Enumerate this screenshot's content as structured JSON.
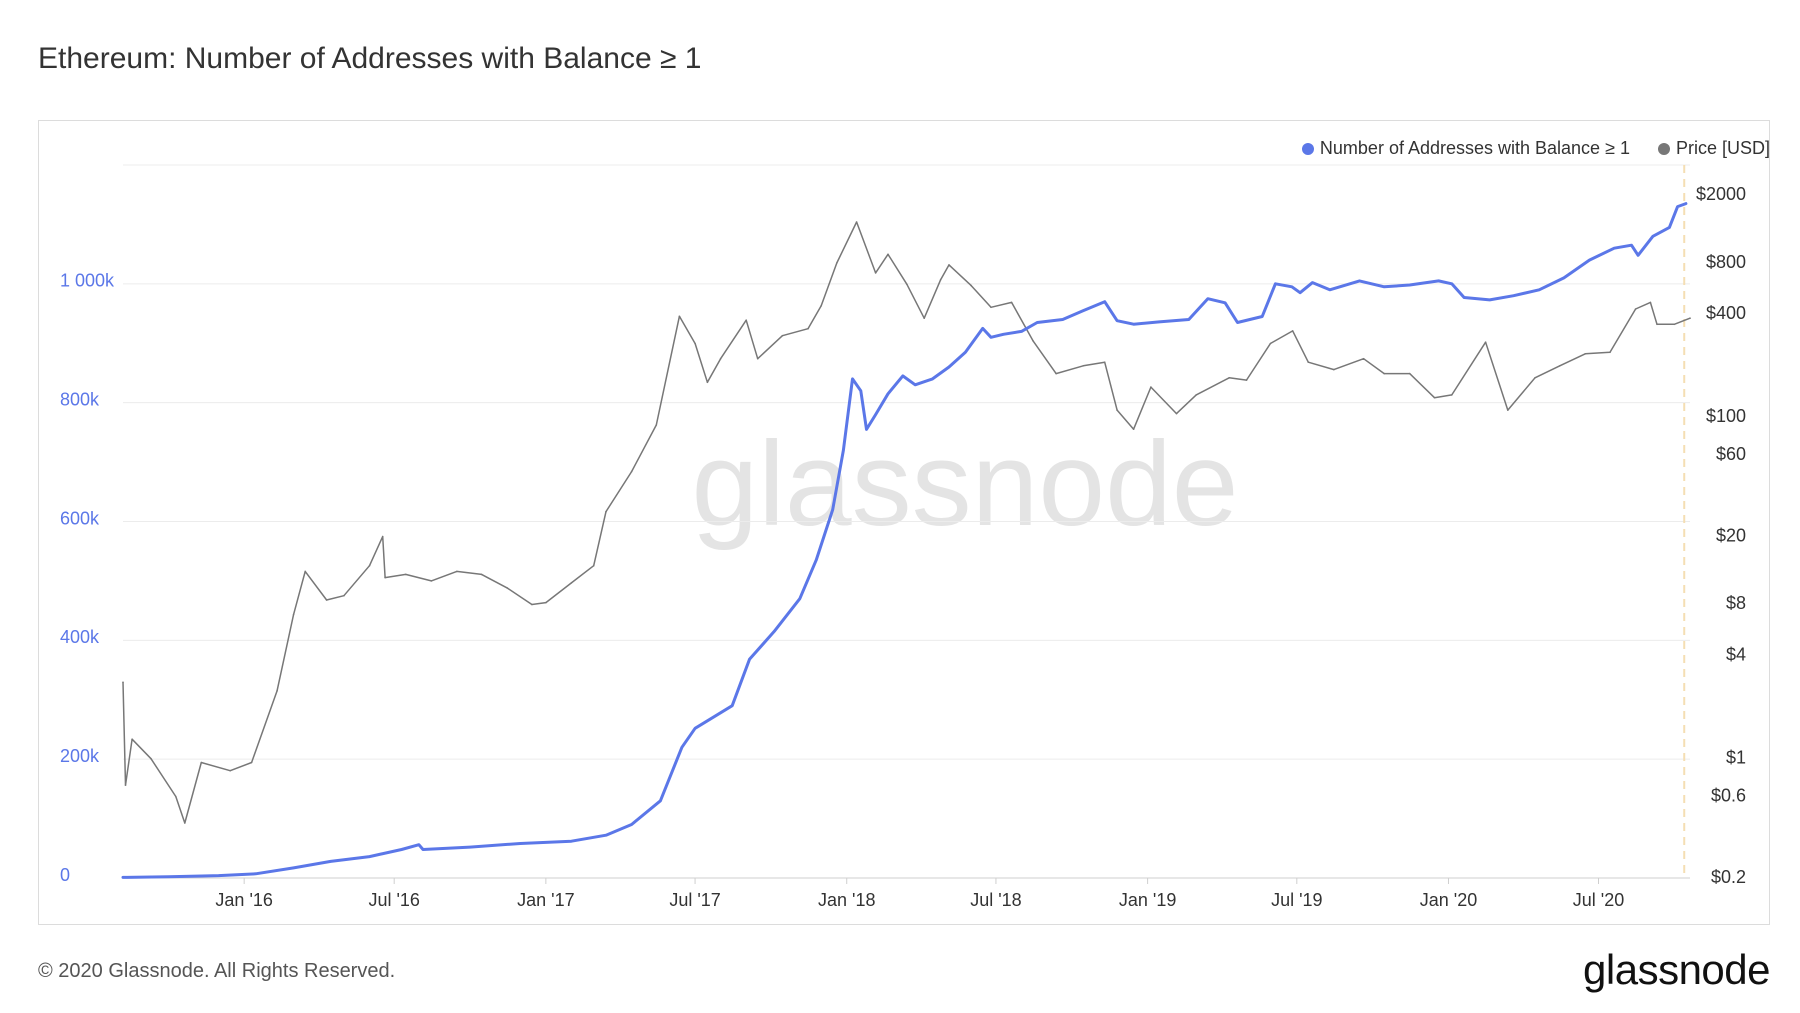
{
  "title": "Ethereum: Number of Addresses with Balance ≥ 1",
  "footer": {
    "copyright": "© 2020 Glassnode. All Rights Reserved.",
    "brand": "glassnode"
  },
  "watermark": "glassnode",
  "colors": {
    "addresses": "#5b77e8",
    "price": "#777777",
    "grid": "#ececec",
    "left_axis_text": "#5b77e8",
    "highlight": "#f5deb3"
  },
  "chart_data": {
    "type": "line",
    "title": "Ethereum: Number of Addresses with Balance ≥ 1",
    "grid": true,
    "legend_placement": "top-right",
    "x_axis": {
      "type": "date",
      "range": [
        "2015-08-07",
        "2020-10-20"
      ],
      "ticks": [
        {
          "date": "2016-01-01",
          "label": "Jan '16"
        },
        {
          "date": "2016-07-01",
          "label": "Jul '16"
        },
        {
          "date": "2017-01-01",
          "label": "Jan '17"
        },
        {
          "date": "2017-07-01",
          "label": "Jul '17"
        },
        {
          "date": "2018-01-01",
          "label": "Jan '18"
        },
        {
          "date": "2018-07-01",
          "label": "Jul '18"
        },
        {
          "date": "2019-01-01",
          "label": "Jan '19"
        },
        {
          "date": "2019-07-01",
          "label": "Jul '19"
        },
        {
          "date": "2020-01-01",
          "label": "Jan '20"
        },
        {
          "date": "2020-07-01",
          "label": "Jul '20"
        }
      ]
    },
    "y_left": {
      "range": [
        0,
        1200000
      ],
      "ticks": [
        {
          "value": 0,
          "label": "0"
        },
        {
          "value": 200000,
          "label": "200k"
        },
        {
          "value": 400000,
          "label": "400k"
        },
        {
          "value": 600000,
          "label": "600k"
        },
        {
          "value": 800000,
          "label": "800k"
        },
        {
          "value": 1000000,
          "label": "1 000k"
        }
      ]
    },
    "y_right": {
      "scale": "log",
      "range": [
        0.2,
        3000
      ],
      "ticks": [
        {
          "value": 2000,
          "label": "$2000"
        },
        {
          "value": 800,
          "label": "$800"
        },
        {
          "value": 400,
          "label": "$400"
        },
        {
          "value": 100,
          "label": "$100"
        },
        {
          "value": 60,
          "label": "$60"
        },
        {
          "value": 20,
          "label": "$20"
        },
        {
          "value": 8,
          "label": "$8"
        },
        {
          "value": 4,
          "label": "$4"
        },
        {
          "value": 1,
          "label": "$1"
        },
        {
          "value": 0.6,
          "label": "$0.6"
        },
        {
          "value": 0.2,
          "label": "$0.2"
        }
      ]
    },
    "highlight_date": "2020-10-13",
    "series": [
      {
        "name": "Number of Addresses with Balance ≥ 1",
        "axis": "left",
        "color": "#5b77e8",
        "points": [
          [
            "2015-08-07",
            1000
          ],
          [
            "2015-10-01",
            2000
          ],
          [
            "2015-12-01",
            4000
          ],
          [
            "2016-01-15",
            7000
          ],
          [
            "2016-03-01",
            17000
          ],
          [
            "2016-04-15",
            28000
          ],
          [
            "2016-06-01",
            36000
          ],
          [
            "2016-07-10",
            48000
          ],
          [
            "2016-07-31",
            56000
          ],
          [
            "2016-08-05",
            48000
          ],
          [
            "2016-10-01",
            52000
          ],
          [
            "2016-12-01",
            58000
          ],
          [
            "2017-02-01",
            62000
          ],
          [
            "2017-03-15",
            72000
          ],
          [
            "2017-04-15",
            90000
          ],
          [
            "2017-05-20",
            130000
          ],
          [
            "2017-06-15",
            220000
          ],
          [
            "2017-07-01",
            252000
          ],
          [
            "2017-07-20",
            268000
          ],
          [
            "2017-08-15",
            290000
          ],
          [
            "2017-09-05",
            368000
          ],
          [
            "2017-10-05",
            415000
          ],
          [
            "2017-11-05",
            470000
          ],
          [
            "2017-11-25",
            535000
          ],
          [
            "2017-12-15",
            620000
          ],
          [
            "2017-12-28",
            720000
          ],
          [
            "2018-01-08",
            840000
          ],
          [
            "2018-01-18",
            820000
          ],
          [
            "2018-01-25",
            755000
          ],
          [
            "2018-02-05",
            780000
          ],
          [
            "2018-02-20",
            815000
          ],
          [
            "2018-03-10",
            845000
          ],
          [
            "2018-03-25",
            830000
          ],
          [
            "2018-04-15",
            840000
          ],
          [
            "2018-05-05",
            860000
          ],
          [
            "2018-05-25",
            885000
          ],
          [
            "2018-06-15",
            925000
          ],
          [
            "2018-06-25",
            910000
          ],
          [
            "2018-07-10",
            915000
          ],
          [
            "2018-08-01",
            920000
          ],
          [
            "2018-08-20",
            935000
          ],
          [
            "2018-09-20",
            940000
          ],
          [
            "2018-10-15",
            955000
          ],
          [
            "2018-11-10",
            970000
          ],
          [
            "2018-11-25",
            938000
          ],
          [
            "2018-12-15",
            932000
          ],
          [
            "2019-01-15",
            936000
          ],
          [
            "2019-02-20",
            940000
          ],
          [
            "2019-03-15",
            975000
          ],
          [
            "2019-04-05",
            968000
          ],
          [
            "2019-04-20",
            935000
          ],
          [
            "2019-05-20",
            945000
          ],
          [
            "2019-06-05",
            1000000
          ],
          [
            "2019-06-25",
            995000
          ],
          [
            "2019-07-05",
            985000
          ],
          [
            "2019-07-20",
            1002000
          ],
          [
            "2019-08-10",
            990000
          ],
          [
            "2019-09-15",
            1005000
          ],
          [
            "2019-10-15",
            995000
          ],
          [
            "2019-11-15",
            998000
          ],
          [
            "2019-12-20",
            1005000
          ],
          [
            "2020-01-05",
            1000000
          ],
          [
            "2020-01-20",
            977000
          ],
          [
            "2020-02-20",
            973000
          ],
          [
            "2020-03-20",
            980000
          ],
          [
            "2020-04-20",
            990000
          ],
          [
            "2020-05-20",
            1010000
          ],
          [
            "2020-06-20",
            1040000
          ],
          [
            "2020-07-20",
            1060000
          ],
          [
            "2020-08-10",
            1065000
          ],
          [
            "2020-08-18",
            1048000
          ],
          [
            "2020-09-05",
            1080000
          ],
          [
            "2020-09-25",
            1095000
          ],
          [
            "2020-10-05",
            1130000
          ],
          [
            "2020-10-15",
            1135000
          ]
        ]
      },
      {
        "name": "Price [USD]",
        "axis": "right",
        "scale": "log",
        "color": "#777777",
        "points": [
          [
            "2015-08-07",
            2.8
          ],
          [
            "2015-08-10",
            0.7
          ],
          [
            "2015-08-18",
            1.3
          ],
          [
            "2015-09-10",
            1.0
          ],
          [
            "2015-10-10",
            0.6
          ],
          [
            "2015-10-21",
            0.42
          ],
          [
            "2015-11-10",
            0.95
          ],
          [
            "2015-12-15",
            0.85
          ],
          [
            "2016-01-10",
            0.95
          ],
          [
            "2016-02-10",
            2.5
          ],
          [
            "2016-03-01",
            7.0
          ],
          [
            "2016-03-15",
            12.5
          ],
          [
            "2016-04-10",
            8.5
          ],
          [
            "2016-05-01",
            9.0
          ],
          [
            "2016-06-01",
            13.5
          ],
          [
            "2016-06-17",
            20.0
          ],
          [
            "2016-06-20",
            11.5
          ],
          [
            "2016-07-15",
            12.0
          ],
          [
            "2016-08-15",
            11.0
          ],
          [
            "2016-09-15",
            12.5
          ],
          [
            "2016-10-15",
            12.0
          ],
          [
            "2016-11-15",
            10.0
          ],
          [
            "2016-12-15",
            8.0
          ],
          [
            "2017-01-01",
            8.2
          ],
          [
            "2017-02-01",
            10.7
          ],
          [
            "2017-02-28",
            13.5
          ],
          [
            "2017-03-15",
            28.0
          ],
          [
            "2017-04-15",
            48.0
          ],
          [
            "2017-05-15",
            90.0
          ],
          [
            "2017-06-12",
            390.0
          ],
          [
            "2017-07-01",
            270.0
          ],
          [
            "2017-07-16",
            160.0
          ],
          [
            "2017-08-01",
            220.0
          ],
          [
            "2017-09-01",
            370.0
          ],
          [
            "2017-09-15",
            220.0
          ],
          [
            "2017-10-15",
            300.0
          ],
          [
            "2017-11-15",
            330.0
          ],
          [
            "2017-12-01",
            450.0
          ],
          [
            "2017-12-20",
            800.0
          ],
          [
            "2018-01-13",
            1390.0
          ],
          [
            "2018-02-05",
            700.0
          ],
          [
            "2018-02-20",
            900.0
          ],
          [
            "2018-03-15",
            600.0
          ],
          [
            "2018-04-05",
            380.0
          ],
          [
            "2018-04-25",
            640.0
          ],
          [
            "2018-05-05",
            780.0
          ],
          [
            "2018-06-01",
            590.0
          ],
          [
            "2018-06-25",
            440.0
          ],
          [
            "2018-07-20",
            470.0
          ],
          [
            "2018-08-15",
            280.0
          ],
          [
            "2018-09-12",
            180.0
          ],
          [
            "2018-10-15",
            200.0
          ],
          [
            "2018-11-10",
            210.0
          ],
          [
            "2018-11-25",
            110.0
          ],
          [
            "2018-12-15",
            85.0
          ],
          [
            "2019-01-05",
            150.0
          ],
          [
            "2019-02-05",
            105.0
          ],
          [
            "2019-03-01",
            135.0
          ],
          [
            "2019-04-10",
            170.0
          ],
          [
            "2019-05-01",
            165.0
          ],
          [
            "2019-05-30",
            270.0
          ],
          [
            "2019-06-26",
            320.0
          ],
          [
            "2019-07-15",
            210.0
          ],
          [
            "2019-08-15",
            190.0
          ],
          [
            "2019-09-20",
            220.0
          ],
          [
            "2019-10-15",
            180.0
          ],
          [
            "2019-11-15",
            180.0
          ],
          [
            "2019-12-15",
            130.0
          ],
          [
            "2020-01-05",
            135.0
          ],
          [
            "2020-02-15",
            275.0
          ],
          [
            "2020-03-13",
            110.0
          ],
          [
            "2020-04-15",
            170.0
          ],
          [
            "2020-05-15",
            200.0
          ],
          [
            "2020-06-15",
            235.0
          ],
          [
            "2020-07-15",
            240.0
          ],
          [
            "2020-08-15",
            430.0
          ],
          [
            "2020-09-02",
            470.0
          ],
          [
            "2020-09-10",
            350.0
          ],
          [
            "2020-10-01",
            350.0
          ],
          [
            "2020-10-20",
            380.0
          ]
        ]
      }
    ]
  }
}
